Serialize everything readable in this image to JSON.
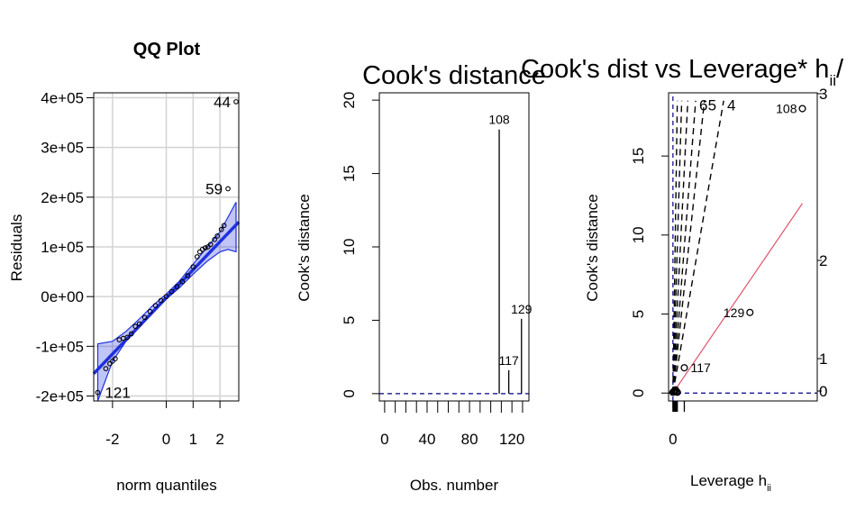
{
  "chart_data": [
    {
      "type": "scatter",
      "title": "QQ Plot",
      "xlabel": "norm quantiles",
      "ylabel": "Residuals",
      "xlim": [
        -2.7,
        2.7
      ],
      "ylim": [
        -210000,
        410000
      ],
      "x_ticks": [
        -2,
        0,
        1,
        2
      ],
      "x_tick_labels": [
        "-2",
        "0",
        "1",
        "2"
      ],
      "y_ticks": [
        -200000,
        -100000,
        0,
        100000,
        200000,
        300000,
        400000
      ],
      "y_tick_labels": [
        "-2e+05",
        "-1e+05",
        "0e+00",
        "1e+05",
        "2e+05",
        "3e+05",
        "4e+05"
      ],
      "grid": true,
      "colors": {
        "line": "#1f30e0",
        "band": "#1f30e0",
        "grid": "#d3d3d3"
      },
      "points": [
        {
          "x": -2.55,
          "y": -193000
        },
        {
          "x": -2.25,
          "y": -145000
        },
        {
          "x": -2.1,
          "y": -135000
        },
        {
          "x": -2.0,
          "y": -130000
        },
        {
          "x": -1.9,
          "y": -125000
        },
        {
          "x": -1.75,
          "y": -87000
        },
        {
          "x": -1.6,
          "y": -84000
        },
        {
          "x": -1.45,
          "y": -82000
        },
        {
          "x": -1.3,
          "y": -75000
        },
        {
          "x": -1.15,
          "y": -60000
        },
        {
          "x": -1.0,
          "y": -55000
        },
        {
          "x": -0.8,
          "y": -42000
        },
        {
          "x": -0.6,
          "y": -30000
        },
        {
          "x": -0.4,
          "y": -18000
        },
        {
          "x": -0.2,
          "y": -8000
        },
        {
          "x": 0.0,
          "y": 0
        },
        {
          "x": 0.2,
          "y": 10000
        },
        {
          "x": 0.4,
          "y": 20000
        },
        {
          "x": 0.6,
          "y": 30000
        },
        {
          "x": 0.8,
          "y": 42000
        },
        {
          "x": 1.0,
          "y": 60000
        },
        {
          "x": 1.15,
          "y": 80000
        },
        {
          "x": 1.25,
          "y": 90000
        },
        {
          "x": 1.35,
          "y": 95000
        },
        {
          "x": 1.45,
          "y": 98000
        },
        {
          "x": 1.55,
          "y": 100000
        },
        {
          "x": 1.65,
          "y": 105000
        },
        {
          "x": 1.8,
          "y": 115000
        },
        {
          "x": 1.9,
          "y": 122000
        },
        {
          "x": 2.05,
          "y": 135000
        },
        {
          "x": 2.15,
          "y": 143000
        },
        {
          "x": 2.3,
          "y": 217000
        },
        {
          "x": 2.6,
          "y": 392000
        }
      ],
      "fit_line": {
        "x": [
          -2.7,
          2.7
        ],
        "y": [
          -155000,
          150000
        ]
      },
      "band_upper": [
        {
          "x": -2.55,
          "y": -95000
        },
        {
          "x": -2.0,
          "y": -90000
        },
        {
          "x": -1.5,
          "y": -70000
        },
        {
          "x": -1.0,
          "y": -45000
        },
        {
          "x": -0.5,
          "y": -18000
        },
        {
          "x": 0.0,
          "y": 5000
        },
        {
          "x": 0.5,
          "y": 32000
        },
        {
          "x": 1.0,
          "y": 65000
        },
        {
          "x": 1.5,
          "y": 98000
        },
        {
          "x": 2.0,
          "y": 130000
        },
        {
          "x": 2.3,
          "y": 160000
        },
        {
          "x": 2.6,
          "y": 190000
        }
      ],
      "band_lower": [
        {
          "x": -2.55,
          "y": -210000
        },
        {
          "x": -2.0,
          "y": -130000
        },
        {
          "x": -1.5,
          "y": -90000
        },
        {
          "x": -1.0,
          "y": -62000
        },
        {
          "x": -0.5,
          "y": -32000
        },
        {
          "x": 0.0,
          "y": -5000
        },
        {
          "x": 0.5,
          "y": 18000
        },
        {
          "x": 1.0,
          "y": 45000
        },
        {
          "x": 1.5,
          "y": 70000
        },
        {
          "x": 2.0,
          "y": 90000
        },
        {
          "x": 2.3,
          "y": 95000
        },
        {
          "x": 2.6,
          "y": 90000
        }
      ],
      "annotations": [
        {
          "label": "44",
          "x": 2.6,
          "y": 392000
        },
        {
          "label": "59",
          "x": 2.3,
          "y": 217000
        },
        {
          "label": "121",
          "x": -2.55,
          "y": -193000
        }
      ]
    },
    {
      "type": "bar",
      "title": "Cook's distance",
      "xlabel": "Obs. number",
      "ylabel": "Cook's distance",
      "xlim": [
        -5,
        136
      ],
      "ylim": [
        0,
        20
      ],
      "x_ticks": [
        0,
        40,
        80,
        120
      ],
      "x_tick_labels": [
        "0",
        "40",
        "80",
        "120"
      ],
      "y_ticks": [
        0,
        5,
        10,
        15,
        20
      ],
      "y_tick_labels": [
        "0",
        "5",
        "10",
        "15",
        "20"
      ],
      "reference_line": 0,
      "spikes": [
        {
          "x": 108,
          "y": 18.0
        },
        {
          "x": 117,
          "y": 1.6
        },
        {
          "x": 129,
          "y": 5.1
        }
      ],
      "annotations": [
        {
          "label": "108",
          "x": 108,
          "y": 18.0
        },
        {
          "label": "117",
          "x": 117,
          "y": 1.6
        },
        {
          "label": "129",
          "x": 129,
          "y": 5.1
        }
      ]
    },
    {
      "type": "scatter",
      "title": "Cook's dist vs Leverage* h",
      "title_sub": "ii",
      "title_tail": "/",
      "xlabel": "Leverage  h",
      "xlabel_sub": "ii",
      "ylabel": "Cook's distance",
      "xlim": [
        -0.005,
        0.165
      ],
      "ylim": [
        -0.5,
        19.0
      ],
      "x_ticks": [
        0
      ],
      "x_tick_labels": [
        "0"
      ],
      "y_ticks": [
        0,
        5,
        10,
        15
      ],
      "y_tick_labels": [
        "0",
        "5",
        "10",
        "15"
      ],
      "right_ticks": [
        0,
        1,
        2,
        3
      ],
      "right_tick_labels": [
        "0",
        "1",
        "2",
        "3"
      ],
      "colors": {
        "fit": "#df536b",
        "dashed_blue": "#00008b"
      },
      "points": [
        {
          "x": 0.0,
          "y": 0.05
        },
        {
          "x": 0.001,
          "y": 0.1
        },
        {
          "x": 0.002,
          "y": 0.15
        },
        {
          "x": 0.003,
          "y": 0.2
        },
        {
          "x": 0.004,
          "y": 0.1
        },
        {
          "x": 0.005,
          "y": 0.05
        },
        {
          "x": 0.013,
          "y": 1.6
        },
        {
          "x": 0.088,
          "y": 5.1
        },
        {
          "x": 0.148,
          "y": 18.0
        }
      ],
      "fit_line": {
        "x": [
          0.0,
          0.148
        ],
        "y": [
          0.0,
          12.0
        ]
      },
      "contours": [
        {
          "label": "6",
          "x": [
            0.0,
            0.026
          ],
          "y": [
            0.0,
            18.5
          ]
        },
        {
          "label": "5",
          "x": [
            0.0,
            0.036
          ],
          "y": [
            0.0,
            18.5
          ]
        },
        {
          "label": "4",
          "x": [
            0.0,
            0.058
          ],
          "y": [
            0.0,
            18.5
          ]
        },
        {
          "x": [
            0.0,
            0.017
          ],
          "y": [
            0.0,
            18.5
          ]
        },
        {
          "x": [
            0.0,
            0.01
          ],
          "y": [
            0.0,
            18.5
          ]
        },
        {
          "x": [
            0.0,
            0.005
          ],
          "y": [
            0.0,
            18.5
          ]
        }
      ],
      "contour_labels": [
        {
          "label": "6",
          "x": 0.03,
          "y": 17.9
        },
        {
          "label": "5",
          "x": 0.04,
          "y": 17.9
        },
        {
          "label": "4",
          "x": 0.062,
          "y": 17.9
        }
      ],
      "annotations": [
        {
          "label": "108",
          "x": 0.148,
          "y": 18.0
        },
        {
          "label": "129",
          "x": 0.088,
          "y": 5.1
        },
        {
          "label": "117",
          "x": 0.013,
          "y": 1.6
        }
      ],
      "rug_x": [
        0.0,
        0.001,
        0.002,
        0.003,
        0.004,
        0.005,
        0.013
      ]
    }
  ]
}
